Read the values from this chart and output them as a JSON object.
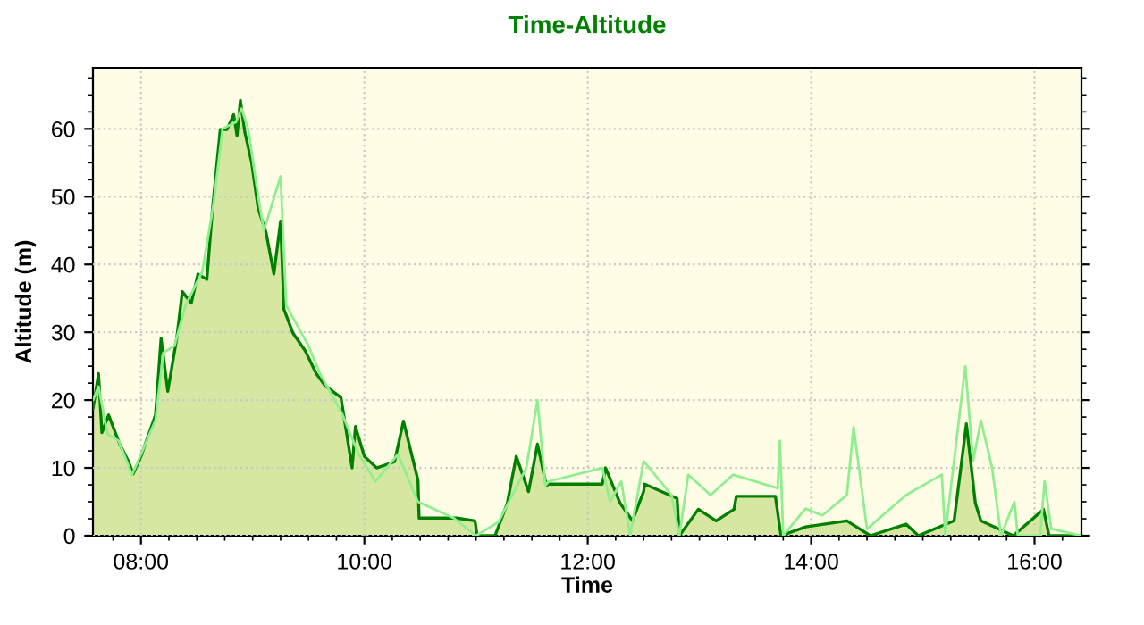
{
  "chart_data": {
    "type": "area",
    "title": "Time-Altitude",
    "xlabel": "Time",
    "ylabel": "Altitude (m)",
    "xlim": [
      7.57,
      16.42
    ],
    "ylim": [
      0,
      69
    ],
    "xticks": [
      {
        "value": 8,
        "label": "08:00"
      },
      {
        "value": 10,
        "label": "10:00"
      },
      {
        "value": 12,
        "label": "12:00"
      },
      {
        "value": 14,
        "label": "14:00"
      },
      {
        "value": 16,
        "label": "16:00"
      }
    ],
    "yticks": [
      0,
      10,
      20,
      30,
      40,
      50,
      60
    ],
    "grid": true,
    "legend": false,
    "series": [
      {
        "type": "line",
        "color": "#90ee90",
        "x": [
          7.57,
          7.62,
          7.7,
          7.8,
          7.92,
          8.0,
          8.13,
          8.2,
          8.3,
          8.4,
          8.55,
          8.65,
          8.73,
          8.85,
          8.9,
          8.96,
          9.05,
          9.1,
          9.25,
          9.3,
          9.5,
          9.6,
          9.8,
          9.95,
          10.1,
          10.3,
          10.48,
          10.8,
          11.0,
          11.2,
          11.45,
          11.55,
          11.62,
          11.65,
          12.13,
          12.2,
          12.3,
          12.38,
          12.5,
          12.75,
          12.82,
          12.9,
          13.1,
          13.3,
          13.7,
          13.72,
          13.75,
          13.95,
          14.1,
          14.32,
          14.38,
          14.5,
          14.85,
          15.17,
          15.2,
          15.38,
          15.45,
          15.52,
          15.62,
          15.7,
          15.82,
          15.85,
          16.05,
          16.09,
          16.15,
          16.42
        ],
        "values": [
          20,
          22,
          15,
          14,
          9,
          12,
          17,
          27,
          28,
          34,
          39,
          49,
          60,
          61,
          63,
          60,
          50,
          45,
          53,
          34,
          28,
          24,
          18,
          12,
          8,
          12,
          5,
          2.6,
          0,
          2,
          10,
          20,
          7.4,
          8,
          10,
          5,
          8,
          0,
          11,
          6,
          0,
          9,
          6,
          9,
          7,
          14,
          0,
          4,
          3,
          6,
          16,
          1,
          6,
          9,
          0,
          25,
          11,
          17,
          10,
          0,
          5,
          0,
          0,
          8,
          1,
          0
        ]
      },
      {
        "color": "#008000",
        "x": [
          7.57,
          7.62,
          7.65,
          7.71,
          7.81,
          7.89,
          7.93,
          8.0,
          8.13,
          8.18,
          8.24,
          8.32,
          8.37,
          8.45,
          8.51,
          8.59,
          8.64,
          8.71,
          8.77,
          8.83,
          8.86,
          8.89,
          8.93,
          8.99,
          9.05,
          9.12,
          9.19,
          9.25,
          9.28,
          9.36,
          9.47,
          9.57,
          9.65,
          9.79,
          9.89,
          9.92,
          10.0,
          10.11,
          10.27,
          10.35,
          10.48,
          10.49,
          10.83,
          10.99,
          11.01,
          11.17,
          11.28,
          11.36,
          11.47,
          11.55,
          11.63,
          11.65,
          12.13,
          12.16,
          12.29,
          12.4,
          12.5,
          12.51,
          12.8,
          12.82,
          12.99,
          13.15,
          13.31,
          13.33,
          13.68,
          13.73,
          13.95,
          14.32,
          14.53,
          14.85,
          14.96,
          15.28,
          15.39,
          15.47,
          15.52,
          15.81,
          16.08,
          16.13,
          16.42
        ],
        "values": [
          18.7,
          23.9,
          15.2,
          17.8,
          13.5,
          10.9,
          9.1,
          11.7,
          17.8,
          29.1,
          21.3,
          29.1,
          36.0,
          34.3,
          38.6,
          37.8,
          48.2,
          59.9,
          59.9,
          62.1,
          59.0,
          64.2,
          59.5,
          55.1,
          48.2,
          44.7,
          38.6,
          46.4,
          33.4,
          29.9,
          27.3,
          23.9,
          22.1,
          20.4,
          10.0,
          16.1,
          11.7,
          10.0,
          10.9,
          16.9,
          8.2,
          2.6,
          2.6,
          2.2,
          0,
          0,
          4.8,
          11.7,
          6.5,
          13.5,
          7.4,
          7.6,
          7.6,
          10.0,
          4.8,
          2.2,
          6.5,
          7.6,
          5.5,
          0,
          3.9,
          2.2,
          3.9,
          5.8,
          5.8,
          0,
          1.3,
          2.2,
          0,
          1.7,
          0,
          2.2,
          16.5,
          4.8,
          2.2,
          0,
          3.9,
          0,
          0
        ]
      }
    ]
  }
}
